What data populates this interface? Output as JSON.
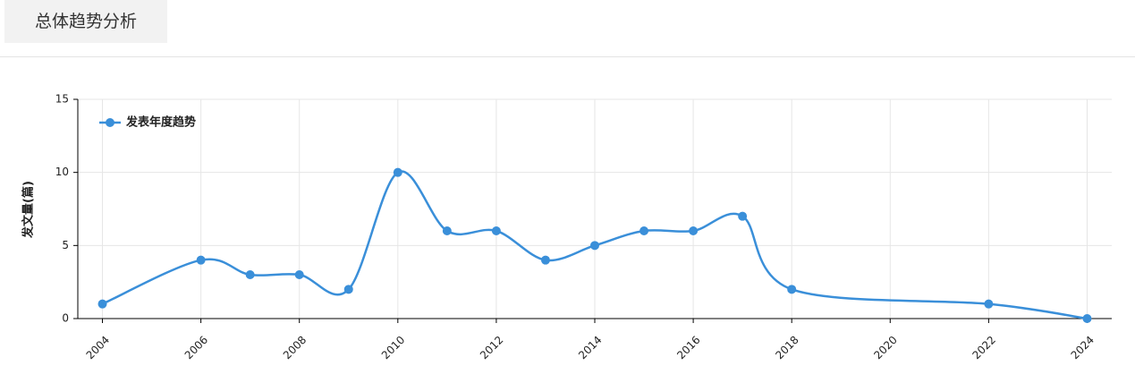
{
  "header": {
    "title": "总体趋势分析"
  },
  "chart_data": {
    "type": "line",
    "x": [
      2004,
      2006,
      2007,
      2008,
      2009,
      2010,
      2011,
      2012,
      2013,
      2014,
      2015,
      2016,
      2017,
      2018,
      2022,
      2024
    ],
    "series": [
      {
        "name": "发表年度趋势",
        "color": "#3a8fd9",
        "values": [
          1,
          4,
          3,
          3,
          2,
          10,
          6,
          6,
          4,
          5,
          6,
          6,
          7,
          2,
          1,
          0
        ]
      }
    ],
    "ylabel": "发文量(篇)",
    "xlim": [
      2003.5,
      2024.5
    ],
    "ylim": [
      0,
      15
    ],
    "xticks": [
      2004,
      2006,
      2008,
      2010,
      2012,
      2014,
      2016,
      2018,
      2020,
      2022,
      2024
    ],
    "yticks": [
      0,
      5,
      10,
      15
    ],
    "grid": true,
    "smooth": true,
    "legend": "upper left"
  }
}
